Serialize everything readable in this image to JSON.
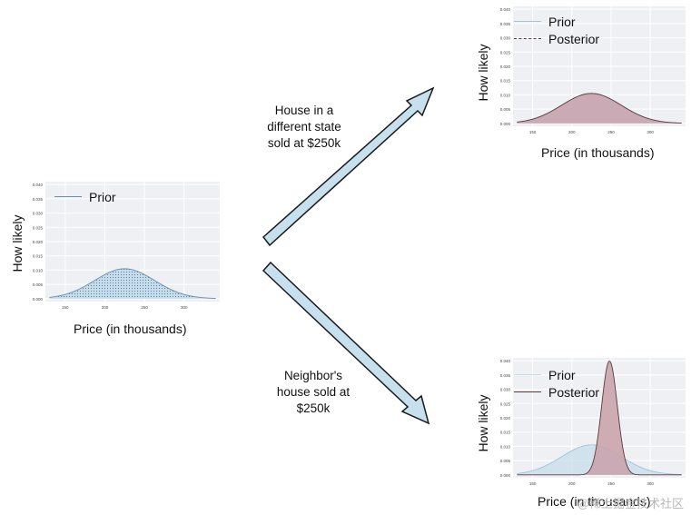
{
  "colors": {
    "prior_line": "#9fc3d9",
    "prior_fill": "#c6dcea",
    "prior_dots": "#3a6f99",
    "posterior_line": "#5a3a3a",
    "posterior_fill": "#c9a4ad",
    "arrow_fill": "#c6e0ee",
    "arrow_stroke": "#1a1a1a",
    "plot_bg": "#eef0f4",
    "grid": "#ffffff"
  },
  "arrows": {
    "up_label": "House in a\ndifferent state\nsold at $250k",
    "down_label": "Neighbor's\nhouse sold at\n$250k"
  },
  "watermark": "@稀土掘金技术社区",
  "chart_data": [
    {
      "id": "left",
      "type": "area",
      "xlabel": "Price (in thousands)",
      "ylabel": "How likely",
      "xlim": [
        125,
        345
      ],
      "ylim": [
        -0.001,
        0.041
      ],
      "xticks": [
        150,
        200,
        250,
        300
      ],
      "yticks": [
        0.0,
        0.005,
        0.01,
        0.015,
        0.02,
        0.025,
        0.03,
        0.035,
        0.04
      ],
      "ytick_labels": [
        "0.000",
        "0.005",
        "0.010",
        "0.015",
        "0.020",
        "0.025",
        "0.030",
        "0.035",
        "0.040"
      ],
      "grid": true,
      "legend": "top-left",
      "series": [
        {
          "name": "Prior",
          "role": "prior",
          "mean": 225,
          "sd": 38
        }
      ]
    },
    {
      "id": "top-right",
      "type": "area",
      "xlabel": "Price (in thousands)",
      "ylabel": "How likely",
      "xlim": [
        125,
        345
      ],
      "ylim": [
        -0.001,
        0.041
      ],
      "xticks": [
        150,
        200,
        250,
        300
      ],
      "yticks": [
        0.0,
        0.005,
        0.01,
        0.015,
        0.02,
        0.025,
        0.03,
        0.035,
        0.04
      ],
      "ytick_labels": [
        "0.000",
        "0.005",
        "0.010",
        "0.015",
        "0.020",
        "0.025",
        "0.030",
        "0.035",
        "0.040"
      ],
      "grid": true,
      "legend": "top-left",
      "series": [
        {
          "name": "Prior",
          "role": "prior",
          "mean": 225,
          "sd": 38
        },
        {
          "name": "Posterior",
          "role": "posterior",
          "mean": 225,
          "sd": 38
        }
      ]
    },
    {
      "id": "bottom-right",
      "type": "area",
      "xlabel": "Price (in thousands)",
      "ylabel": "How likely",
      "xlim": [
        125,
        345
      ],
      "ylim": [
        -0.001,
        0.041
      ],
      "xticks": [
        150,
        200,
        250,
        300
      ],
      "yticks": [
        0.0,
        0.005,
        0.01,
        0.015,
        0.02,
        0.025,
        0.03,
        0.035,
        0.04
      ],
      "ytick_labels": [
        "0.000",
        "0.005",
        "0.010",
        "0.015",
        "0.020",
        "0.025",
        "0.030",
        "0.035",
        "0.040"
      ],
      "grid": true,
      "legend": "top-left",
      "series": [
        {
          "name": "Prior",
          "role": "prior",
          "mean": 225,
          "sd": 38
        },
        {
          "name": "Posterior",
          "role": "posterior",
          "mean": 248,
          "sd": 10
        }
      ]
    }
  ]
}
